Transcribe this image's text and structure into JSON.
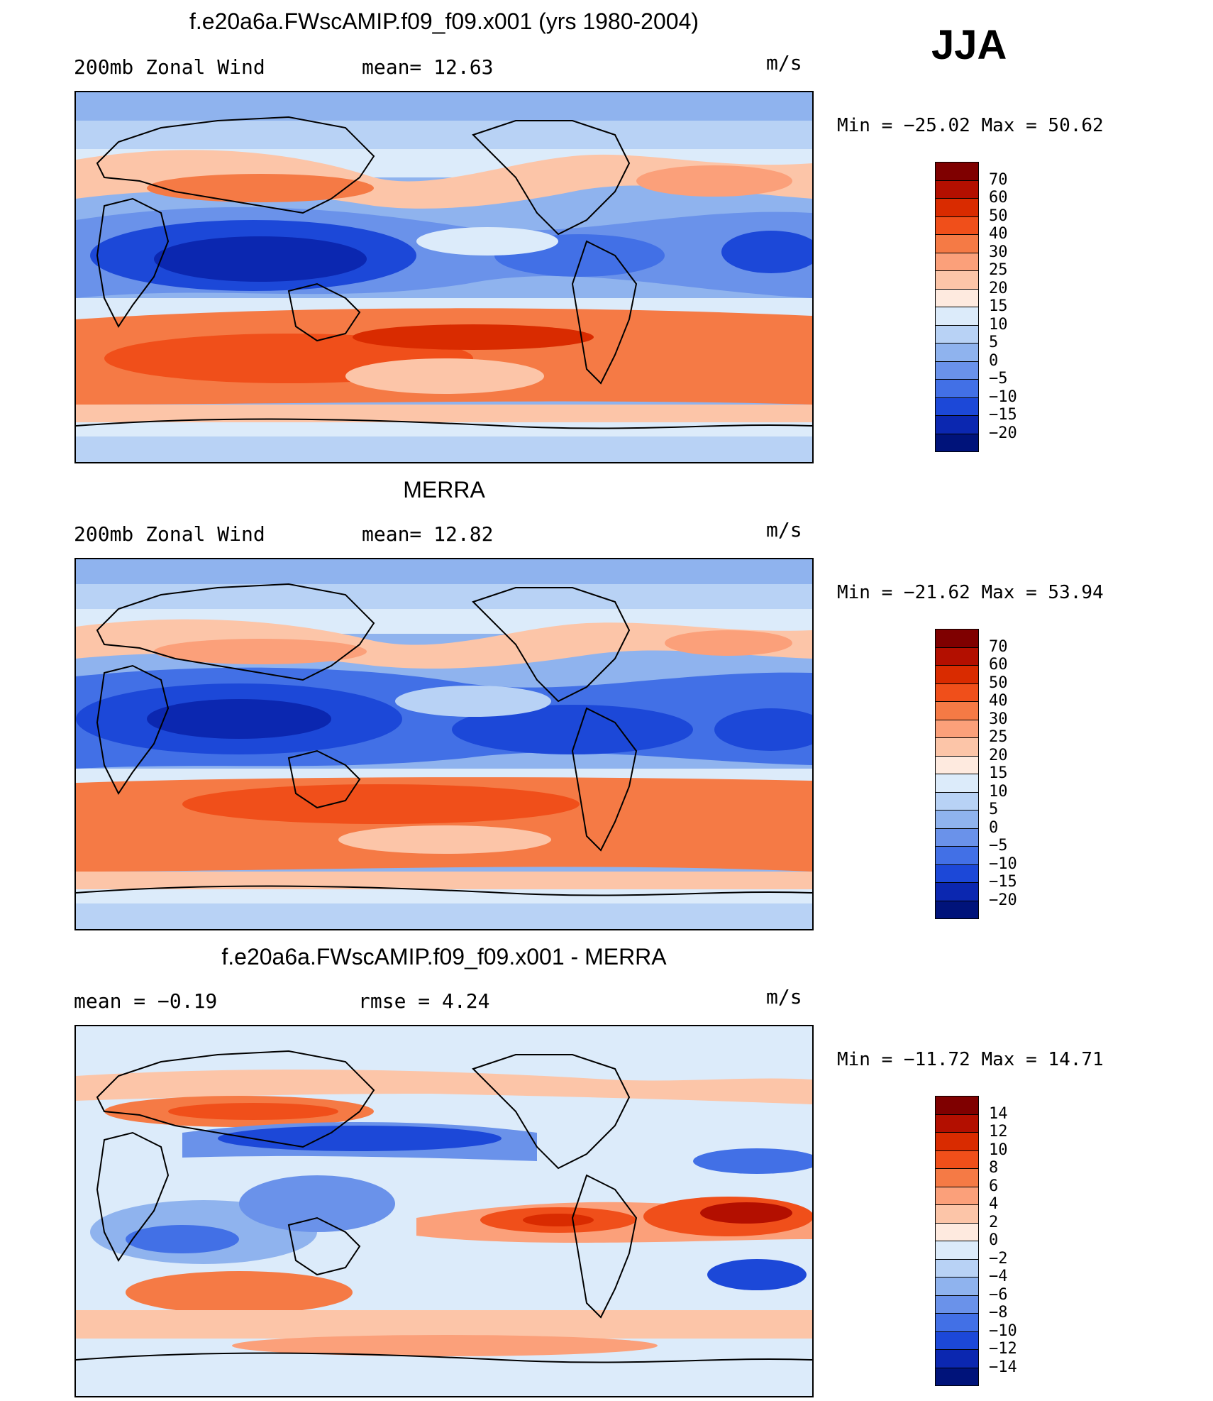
{
  "season": "JJA",
  "panels": [
    {
      "title": "f.e20a6a.FWscAMIP.f09_f09.x001 (yrs 1980-2004)",
      "left_text": "200mb Zonal Wind",
      "mid_text": "mean=  12.63",
      "units": "m/s",
      "minmax": "Min = −25.02 Max =  50.62",
      "colorbar": {
        "labels": [
          "70",
          "60",
          "50",
          "40",
          "30",
          "25",
          "20",
          "15",
          "10",
          "5",
          "0",
          "−5",
          "−10",
          "−15",
          "−20"
        ],
        "colors": [
          "#7f0000",
          "#b30f00",
          "#d92b00",
          "#f04f1a",
          "#f57a45",
          "#fba07a",
          "#fcc5a8",
          "#feeadf",
          "#dcebfa",
          "#b8d2f5",
          "#8fb3ee",
          "#6a92ea",
          "#4270e6",
          "#1c48d8",
          "#0b27b0",
          "#00137a"
        ]
      }
    },
    {
      "title": "MERRA",
      "left_text": "200mb Zonal Wind",
      "mid_text": "mean=  12.82",
      "units": "m/s",
      "minmax": "Min = −21.62 Max =  53.94",
      "colorbar": {
        "labels": [
          "70",
          "60",
          "50",
          "40",
          "30",
          "25",
          "20",
          "15",
          "10",
          "5",
          "0",
          "−5",
          "−10",
          "−15",
          "−20"
        ],
        "colors": [
          "#7f0000",
          "#b30f00",
          "#d92b00",
          "#f04f1a",
          "#f57a45",
          "#fba07a",
          "#fcc5a8",
          "#feeadf",
          "#dcebfa",
          "#b8d2f5",
          "#8fb3ee",
          "#6a92ea",
          "#4270e6",
          "#1c48d8",
          "#0b27b0",
          "#00137a"
        ]
      }
    },
    {
      "title": "f.e20a6a.FWscAMIP.f09_f09.x001 - MERRA",
      "left_text": "mean =   −0.19",
      "mid_text": "rmse =    4.24",
      "units": "m/s",
      "minmax": "Min = −11.72 Max =  14.71",
      "colorbar": {
        "labels": [
          "14",
          "12",
          "10",
          "8",
          "6",
          "4",
          "2",
          "0",
          "−2",
          "−4",
          "−6",
          "−8",
          "−10",
          "−12",
          "−14"
        ],
        "colors": [
          "#7f0000",
          "#b30f00",
          "#d92b00",
          "#f04f1a",
          "#f57a45",
          "#fba07a",
          "#fcc5a8",
          "#feeadf",
          "#dcebfa",
          "#b8d2f5",
          "#8fb3ee",
          "#6a92ea",
          "#4270e6",
          "#1c48d8",
          "#0b27b0",
          "#00137a"
        ]
      }
    }
  ]
}
